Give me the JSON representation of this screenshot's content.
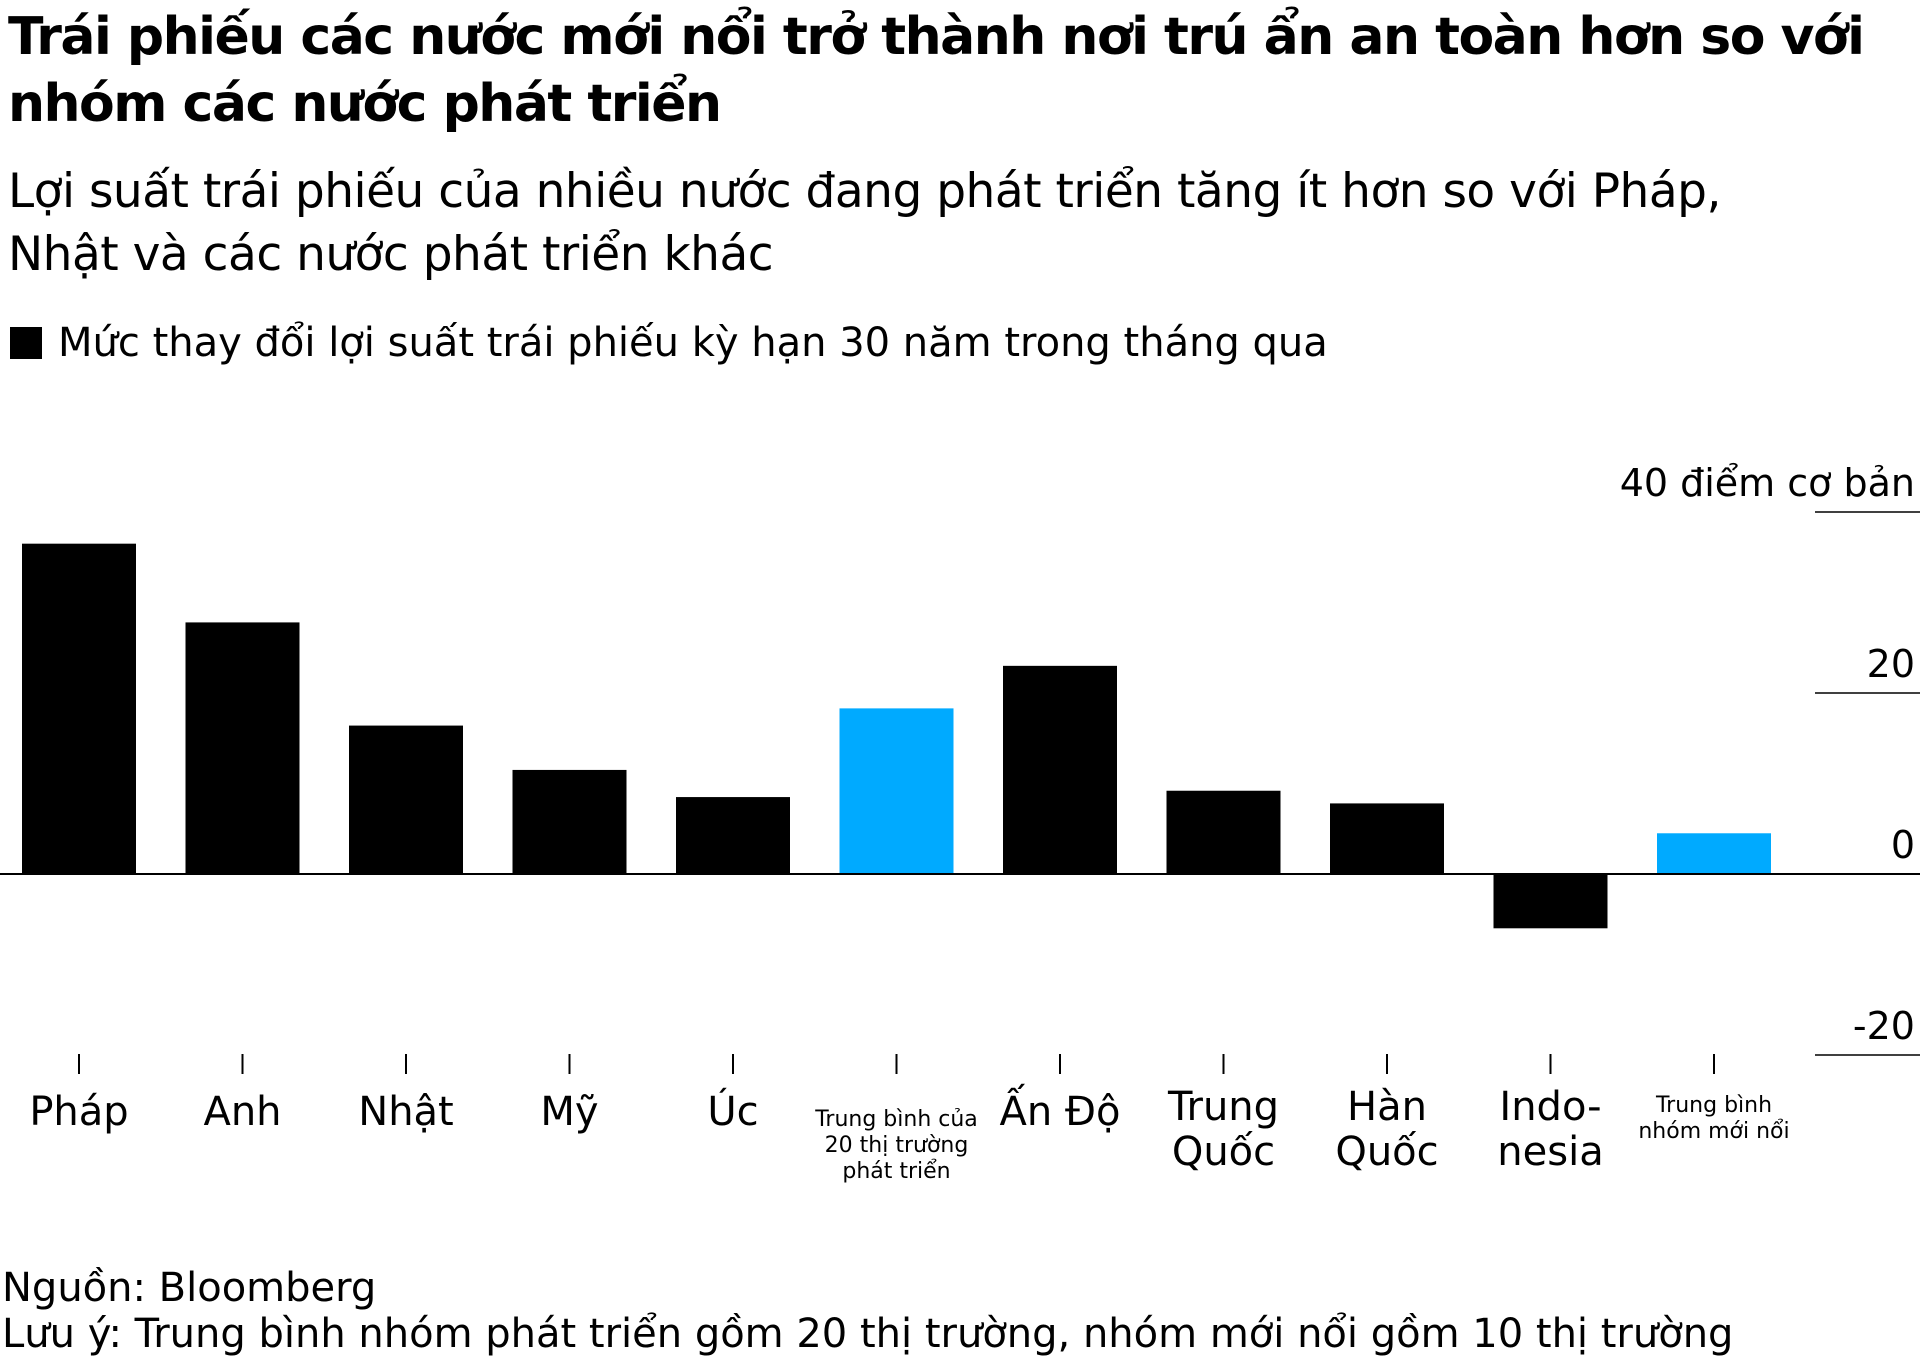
{
  "header": {
    "title": "Trái phiếu các nước mới nổi trở thành nơi trú ẩn an toàn hơn so với nhóm các nước phát triển",
    "subtitle": "Lợi suất trái phiếu của nhiều nước đang phát triển tăng ít hơn so với Pháp, Nhật và các nước phát triển khác",
    "legend_label": "Mức thay đổi lợi suất trái phiếu kỳ hạn 30 năm trong tháng qua"
  },
  "footer": {
    "source": "Nguồn: Bloomberg",
    "note": "Lưu ý: Trung bình nhóm phát triển gồm 20 thị trường, nhóm mới nổi gồm 10 thị trường"
  },
  "colors": {
    "country": "#000000",
    "average": "#00AAFF"
  },
  "chart_data": {
    "type": "bar",
    "title": "Trái phiếu các nước mới nổi trở thành nơi trú ẩn an toàn hơn so với nhóm các nước phát triển",
    "subtitle": "Lợi suất trái phiếu của nhiều nước đang phát triển tăng ít hơn so với Pháp, Nhật và các nước phát triển khác",
    "xlabel": "",
    "ylabel": "",
    "unit_label": "điểm cơ bản",
    "ylim": [
      -20,
      40
    ],
    "yticks": [
      "40 điểm cơ bản",
      "20",
      "0",
      "-20"
    ],
    "ytick_values": [
      40,
      20,
      0,
      -20
    ],
    "grid": false,
    "legend": "top-left",
    "categories": [
      {
        "label": "Pháp",
        "lines": [
          "Pháp"
        ],
        "highlight": false
      },
      {
        "label": "Anh",
        "lines": [
          "Anh"
        ],
        "highlight": false
      },
      {
        "label": "Nhật",
        "lines": [
          "Nhật"
        ],
        "highlight": false
      },
      {
        "label": "Mỹ",
        "lines": [
          "Mỹ"
        ],
        "highlight": false
      },
      {
        "label": "Úc",
        "lines": [
          "Úc"
        ],
        "highlight": false
      },
      {
        "label": "Trung bình của 20 thị trường phát triển",
        "lines": [
          "Trung bình của",
          "20 thị trường",
          "phát triển"
        ],
        "highlight": true
      },
      {
        "label": "Ấn Độ",
        "lines": [
          "Ấn Độ"
        ],
        "highlight": false
      },
      {
        "label": "Trung Quốc",
        "lines": [
          "Trung",
          "Quốc"
        ],
        "highlight": false
      },
      {
        "label": "Hàn Quốc",
        "lines": [
          "Hàn",
          "Quốc"
        ],
        "highlight": false
      },
      {
        "label": "Indonesia",
        "lines": [
          "Indo-",
          "nesia"
        ],
        "highlight": false
      },
      {
        "label": "Trung bình nhóm mới nổi",
        "lines": [
          "Trung bình",
          "nhóm mới nổi"
        ],
        "highlight": true
      }
    ],
    "series": [
      {
        "values": [
          36.5,
          27.8,
          16.4,
          11.5,
          8.5,
          18.3,
          23.0,
          9.2,
          7.8,
          -6.0,
          4.5
        ]
      }
    ]
  }
}
